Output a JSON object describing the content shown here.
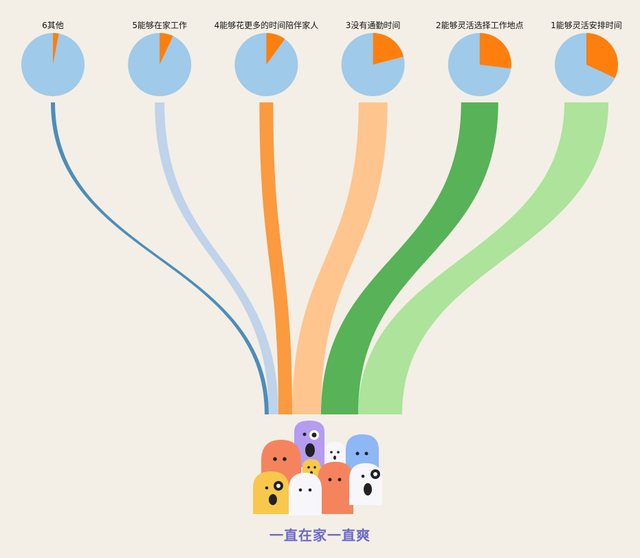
{
  "chart_data": {
    "type": "sankey-pie",
    "categories": [
      "6其他",
      "5能够在家工作",
      "4能够花更多的时间陪伴家人",
      "3没有通勤时间",
      "2能够灵活选择工作地点",
      "1能够灵活安排时间"
    ],
    "series": [
      {
        "values": [
          0.03,
          0.07,
          0.1,
          0.21,
          0.27,
          0.32
        ]
      }
    ],
    "pie_color_rest": "#9fcae9",
    "pie_color_share": "#ff7f0e",
    "flow_colors": [
      "#4c8dbb",
      "#bfd3ea",
      "#fb9a3e",
      "#fec58f",
      "#58b257",
      "#ade39b"
    ]
  },
  "logo": {
    "text": "一直在家一直爽"
  }
}
